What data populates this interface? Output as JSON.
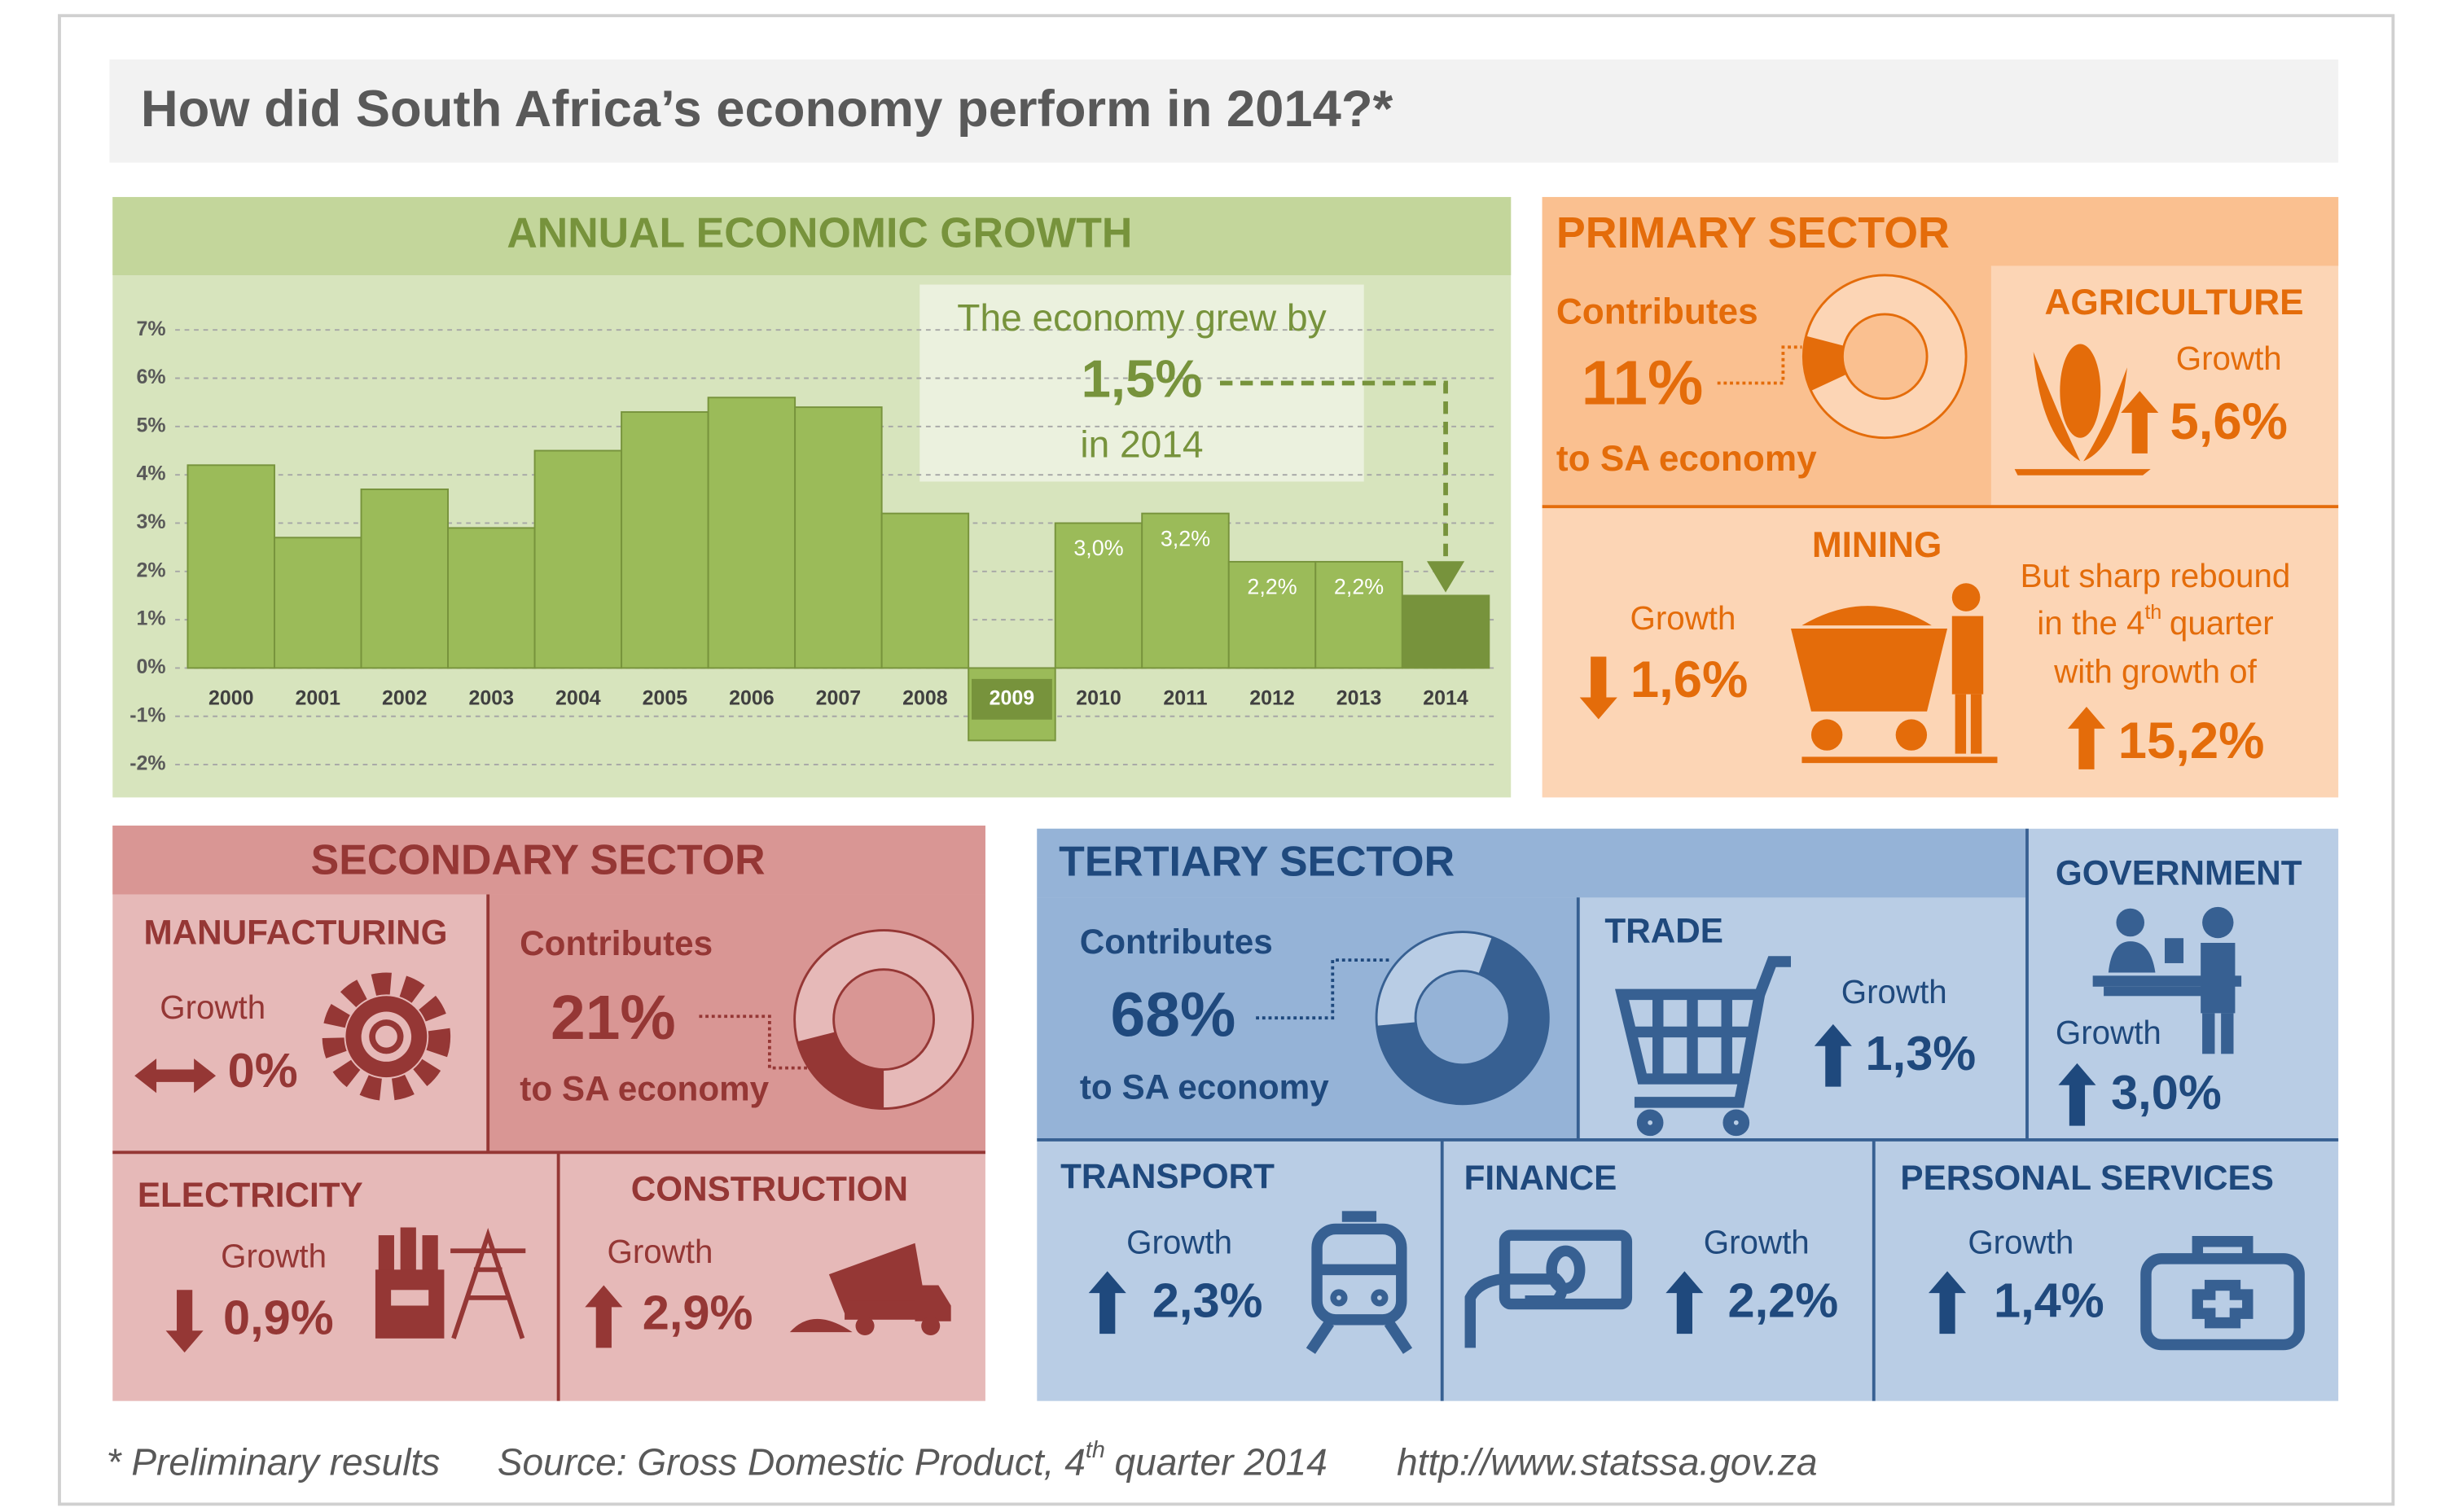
{
  "header": {
    "title": "How did South Africa’s economy perform in 2014?*"
  },
  "chart_data": {
    "type": "bar",
    "title": "ANNUAL ECONOMIC GROWTH",
    "categories": [
      "2000",
      "2001",
      "2002",
      "2003",
      "2004",
      "2005",
      "2006",
      "2007",
      "2008",
      "2009",
      "2010",
      "2011",
      "2012",
      "2013",
      "2014"
    ],
    "values": [
      4.2,
      2.7,
      3.7,
      2.9,
      4.5,
      5.3,
      5.6,
      5.4,
      3.2,
      -1.5,
      3.0,
      3.2,
      2.2,
      2.2,
      1.5
    ],
    "value_labels": [
      null,
      null,
      null,
      null,
      null,
      null,
      null,
      null,
      null,
      null,
      "3,0%",
      "3,2%",
      "2,2%",
      "2,2%",
      null
    ],
    "colors": [
      "#9bbb59",
      "#9bbb59",
      "#9bbb59",
      "#9bbb59",
      "#9bbb59",
      "#9bbb59",
      "#9bbb59",
      "#9bbb59",
      "#9bbb59",
      "#9bbb59",
      "#9bbb59",
      "#9bbb59",
      "#9bbb59",
      "#9bbb59",
      "#77933c"
    ],
    "ylim": [
      -2,
      7
    ],
    "yticks": [
      {
        "value": -2,
        "label": "-2%"
      },
      {
        "value": -1,
        "label": "-1%"
      },
      {
        "value": 0,
        "label": "0%"
      },
      {
        "value": 1,
        "label": "1%"
      },
      {
        "value": 2,
        "label": "2%"
      },
      {
        "value": 3,
        "label": "3%"
      },
      {
        "value": 4,
        "label": "4%"
      },
      {
        "value": 5,
        "label": "5%"
      },
      {
        "value": 6,
        "label": "6%"
      },
      {
        "value": 7,
        "label": "7%"
      }
    ],
    "grid": true,
    "annotation": [
      "The economy grew by",
      "1,5%",
      "in 2014"
    ]
  },
  "primary": {
    "title": "PRIMARY SECTOR",
    "contribution": {
      "label": "Contributes",
      "share": {
        "value": 11,
        "label": "11%"
      },
      "suffix": "to SA economy"
    },
    "agriculture": {
      "title": "AGRICULTURE",
      "growth_label": "Growth",
      "direction": "up",
      "growth": "5,6%"
    },
    "mining": {
      "title": "MINING",
      "growth_label": "Growth",
      "direction": "down",
      "growth": "1,6%",
      "rebound": {
        "line_1": "But sharp rebound",
        "line_2": [
          "in the 4",
          "th",
          "quarter"
        ],
        "line_3": "with growth of",
        "direction": "up",
        "growth": "15,2%"
      }
    }
  },
  "secondary": {
    "title": "SECONDARY SECTOR",
    "contribution": {
      "label": "Contributes",
      "share": {
        "value": 21,
        "label": "21%"
      },
      "suffix": "to SA economy"
    },
    "manufacturing": {
      "title": "MANUFACTURING",
      "growth_label": "Growth",
      "direction": "both",
      "growth": "0%"
    },
    "electricity": {
      "title": "ELECTRICITY",
      "growth_label": "Growth",
      "direction": "down",
      "growth": "0,9%"
    },
    "construction": {
      "title": "CONSTRUCTION",
      "growth_label": "Growth",
      "direction": "up",
      "growth": "2,9%"
    }
  },
  "tertiary": {
    "title": "TERTIARY SECTOR",
    "contribution": {
      "label": "Contributes",
      "share": {
        "value": 68,
        "label": "68%"
      },
      "suffix": "to SA economy"
    },
    "trade": {
      "title": "TRADE",
      "growth_label": "Growth",
      "direction": "up",
      "growth": "1,3%"
    },
    "government": {
      "title": "GOVERNMENT",
      "growth_label": "Growth",
      "direction": "up",
      "growth": "3,0%"
    },
    "transport": {
      "title": "TRANSPORT",
      "growth_label": "Growth",
      "direction": "up",
      "growth": "2,3%"
    },
    "finance": {
      "title": "FINANCE",
      "growth_label": "Growth",
      "direction": "up",
      "growth": "2,2%"
    },
    "personal_services": {
      "title": "PERSONAL SERVICES",
      "growth_label": "Growth",
      "direction": "up",
      "growth": "1,4%"
    }
  },
  "footer": {
    "note": "* Preliminary results",
    "source": [
      "Source: Gross Domestic Product, 4",
      "th",
      "quarter 2014"
    ],
    "url": "http://www.statssa.gov.za"
  }
}
